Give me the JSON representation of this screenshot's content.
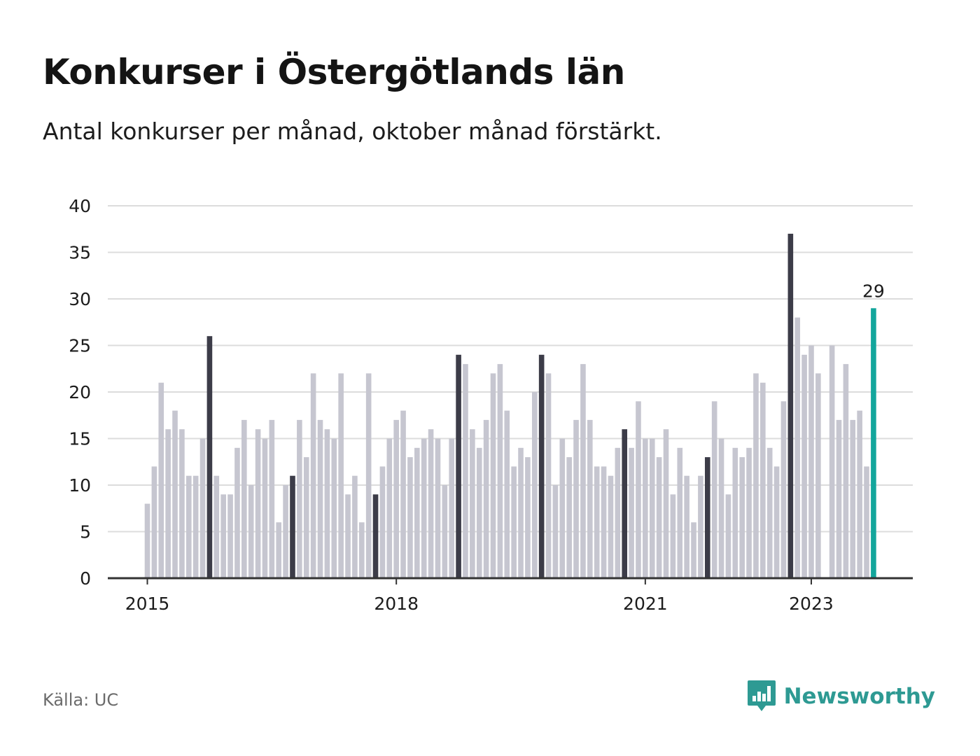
{
  "header": {
    "title": "Konkurser i Östergötlands län",
    "subtitle": "Antal konkurser per månad, oktober månad förstärkt."
  },
  "footer": {
    "source": "Källa: UC",
    "brand": "Newsworthy",
    "brand_icon": "newsworthy-logo-icon"
  },
  "colors": {
    "bar": "#c6c6d0",
    "october": "#3c3c48",
    "latest": "#13a69c",
    "grid": "#dcdcdc",
    "axis": "#333333",
    "brand": "#2e9a93"
  },
  "chart_data": {
    "type": "bar",
    "title": "Konkurser i Östergötlands län",
    "subtitle": "Antal konkurser per månad, oktober månad förstärkt.",
    "ylim": [
      0,
      40
    ],
    "yticks": [
      0,
      5,
      10,
      15,
      20,
      25,
      30,
      35,
      40
    ],
    "xtick_labels": [
      {
        "label": "2015",
        "month_index": 0
      },
      {
        "label": "2018",
        "month_index": 36
      },
      {
        "label": "2021",
        "month_index": 72
      },
      {
        "label": "2023",
        "month_index": 96
      }
    ],
    "start": "2015-01",
    "end": "2023-10",
    "grid": true,
    "highlight": "October months darker; latest month (2023-10) teal with value label",
    "latest_label": "29",
    "values": [
      8,
      12,
      21,
      16,
      18,
      16,
      11,
      11,
      15,
      26,
      11,
      9,
      9,
      14,
      17,
      10,
      16,
      15,
      17,
      6,
      10,
      11,
      17,
      13,
      22,
      17,
      16,
      15,
      22,
      9,
      11,
      6,
      22,
      9,
      12,
      15,
      17,
      18,
      13,
      14,
      15,
      16,
      15,
      10,
      15,
      24,
      23,
      16,
      14,
      17,
      22,
      23,
      18,
      12,
      14,
      13,
      20,
      24,
      22,
      10,
      15,
      13,
      17,
      23,
      17,
      12,
      12,
      11,
      14,
      16,
      14,
      19,
      15,
      15,
      13,
      16,
      9,
      14,
      11,
      6,
      11,
      13,
      19,
      15,
      9,
      14,
      13,
      14,
      22,
      21,
      14,
      12,
      19,
      37,
      28,
      24,
      25,
      22,
      0,
      25,
      17,
      23,
      17,
      18,
      12,
      29
    ]
  }
}
